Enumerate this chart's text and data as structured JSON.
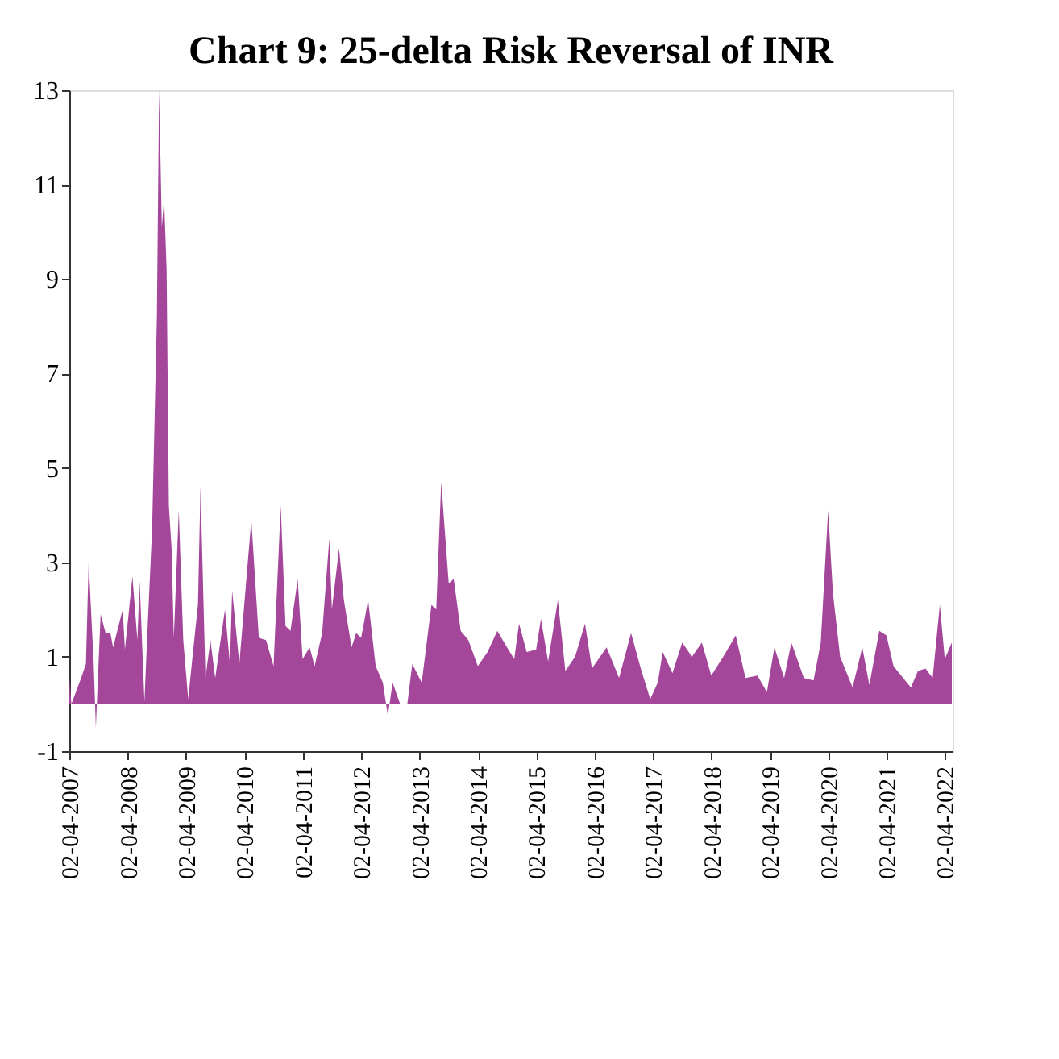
{
  "chart_data": {
    "type": "area",
    "title": "Chart 9: 25-delta Risk Reversal of INR",
    "x": [
      "2007-04-02",
      "2007-04-15",
      "2007-06-15",
      "2007-07-15",
      "2007-08-01",
      "2007-09-01",
      "2007-09-15",
      "2007-10-15",
      "2007-11-15",
      "2007-12-15",
      "2008-01-01",
      "2008-03-01",
      "2008-03-15",
      "2008-05-01",
      "2008-06-01",
      "2008-06-15",
      "2008-07-15",
      "2008-08-01",
      "2008-09-01",
      "2008-10-01",
      "2008-10-15",
      "2008-11-01",
      "2008-11-15",
      "2008-12-01",
      "2008-12-15",
      "2009-01-01",
      "2009-01-15",
      "2009-02-15",
      "2009-03-15",
      "2009-04-15",
      "2009-05-15",
      "2009-06-15",
      "2009-07-01",
      "2009-08-01",
      "2009-09-01",
      "2009-10-01",
      "2009-12-01",
      "2010-01-01",
      "2010-01-15",
      "2010-03-01",
      "2010-05-15",
      "2010-07-01",
      "2010-08-15",
      "2010-10-01",
      "2010-11-15",
      "2010-12-15",
      "2011-01-15",
      "2011-03-01",
      "2011-04-01",
      "2011-05-15",
      "2011-06-15",
      "2011-08-01",
      "2011-09-15",
      "2011-10-01",
      "2011-11-15",
      "2011-12-15",
      "2012-02-01",
      "2012-03-01",
      "2012-04-01",
      "2012-05-15",
      "2012-07-01",
      "2012-08-15",
      "2012-09-15",
      "2012-10-15",
      "2012-12-01",
      "2013-01-15",
      "2013-02-15",
      "2013-04-15",
      "2013-06-15",
      "2013-07-15",
      "2013-08-15",
      "2013-10-01",
      "2013-11-01",
      "2013-12-15",
      "2014-02-01",
      "2014-04-01",
      "2014-06-01",
      "2014-08-01",
      "2014-10-01",
      "2014-11-15",
      "2014-12-15",
      "2015-02-01",
      "2015-04-01",
      "2015-05-01",
      "2015-06-15",
      "2015-08-15",
      "2015-10-01",
      "2015-12-01",
      "2016-02-01",
      "2016-03-15",
      "2016-06-15",
      "2016-09-01",
      "2016-11-15",
      "2017-01-15",
      "2017-03-15",
      "2017-05-01",
      "2017-06-01",
      "2017-08-01",
      "2017-10-01",
      "2017-12-01",
      "2018-02-01",
      "2018-04-01",
      "2018-06-15",
      "2018-09-01",
      "2018-11-01",
      "2019-01-15",
      "2019-03-15",
      "2019-05-01",
      "2019-07-01",
      "2019-08-15",
      "2019-11-01",
      "2020-01-01",
      "2020-02-15",
      "2020-04-01",
      "2020-05-01",
      "2020-06-15",
      "2020-09-01",
      "2020-11-01",
      "2020-12-15",
      "2021-02-15",
      "2021-04-01",
      "2021-05-15",
      "2021-09-01",
      "2021-10-15",
      "2021-12-01",
      "2022-01-15",
      "2022-03-01",
      "2022-04-01",
      "2022-05-15"
    ],
    "series": [
      {
        "color": "#a4479a",
        "values": [
          0.55,
          0.0,
          0.55,
          0.85,
          3.0,
          0.9,
          -0.5,
          1.9,
          1.5,
          1.5,
          1.2,
          2.0,
          1.15,
          2.7,
          1.35,
          2.6,
          0.05,
          1.4,
          3.7,
          8.2,
          13.0,
          10.1,
          10.7,
          9.2,
          4.2,
          3.3,
          1.4,
          4.1,
          1.35,
          0.1,
          1.1,
          2.1,
          4.6,
          0.55,
          1.35,
          0.55,
          2.0,
          0.85,
          2.4,
          0.85,
          3.9,
          1.4,
          1.35,
          0.8,
          4.2,
          1.65,
          1.55,
          2.65,
          0.95,
          1.2,
          0.8,
          1.5,
          3.5,
          2.0,
          3.3,
          2.2,
          1.2,
          1.5,
          1.4,
          2.2,
          0.8,
          0.45,
          -0.25,
          0.45,
          0.0,
          0.0,
          0.85,
          0.45,
          2.1,
          2.0,
          4.7,
          2.55,
          2.65,
          1.55,
          1.35,
          0.8,
          1.1,
          1.55,
          1.2,
          0.95,
          1.7,
          1.1,
          1.15,
          1.8,
          0.9,
          2.2,
          0.7,
          1.0,
          1.7,
          0.75,
          1.2,
          0.55,
          1.5,
          0.75,
          0.1,
          0.45,
          1.1,
          0.65,
          1.3,
          1.0,
          1.3,
          0.6,
          1.0,
          1.45,
          0.55,
          0.6,
          0.25,
          1.2,
          0.55,
          1.3,
          0.55,
          0.5,
          1.3,
          4.1,
          2.35,
          1.0,
          0.35,
          1.2,
          0.4,
          1.55,
          1.45,
          0.8,
          0.35,
          0.7,
          0.75,
          0.55,
          2.1,
          0.95,
          1.3
        ]
      }
    ],
    "xlim": [
      "2007-04-02",
      "2022-05-20"
    ],
    "xticks": [
      {
        "value": "2007-04-02",
        "label": "02-04-2007"
      },
      {
        "value": "2008-04-02",
        "label": "02-04-2008"
      },
      {
        "value": "2009-04-02",
        "label": "02-04-2009"
      },
      {
        "value": "2010-04-02",
        "label": "02-04-2010"
      },
      {
        "value": "2011-04-02",
        "label": "02-04-2011"
      },
      {
        "value": "2012-04-02",
        "label": "02-04-2012"
      },
      {
        "value": "2013-04-02",
        "label": "02-04-2013"
      },
      {
        "value": "2014-04-02",
        "label": "02-04-2014"
      },
      {
        "value": "2015-04-02",
        "label": "02-04-2015"
      },
      {
        "value": "2016-04-02",
        "label": "02-04-2016"
      },
      {
        "value": "2017-04-02",
        "label": "02-04-2017"
      },
      {
        "value": "2018-04-02",
        "label": "02-04-2018"
      },
      {
        "value": "2019-04-02",
        "label": "02-04-2019"
      },
      {
        "value": "2020-04-02",
        "label": "02-04-2020"
      },
      {
        "value": "2021-04-02",
        "label": "02-04-2021"
      },
      {
        "value": "2022-04-02",
        "label": "02-04-2022"
      }
    ],
    "ylim": [
      -1,
      13
    ],
    "yticks": [
      -1,
      1,
      3,
      5,
      7,
      9,
      11,
      13
    ],
    "grid": false
  }
}
